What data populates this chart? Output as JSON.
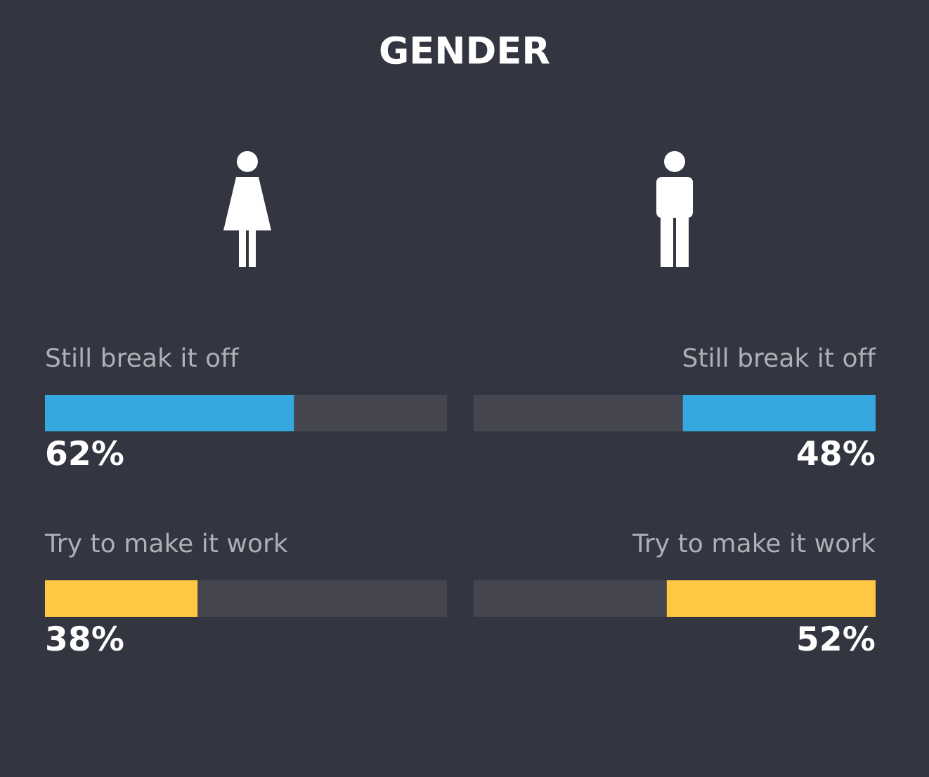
{
  "chart_data": [
    {
      "type": "bar",
      "title": "GENDER",
      "orientation": "horizontal",
      "stacked": true,
      "categories": [
        "Still break it off",
        "Try to make it work"
      ],
      "xlim": [
        0,
        100
      ],
      "series": [
        {
          "colors": [
            "#35a8e0",
            "#fec843"
          ],
          "values": [
            62,
            38
          ],
          "value_labels": [
            "62%",
            "38%"
          ]
        },
        {
          "color": "#45464f",
          "values": [
            38,
            62
          ]
        }
      ]
    },
    {
      "type": "bar",
      "orientation": "horizontal",
      "stacked": true,
      "categories": [
        "Still break it off",
        "Try to make it work"
      ],
      "xlim": [
        100,
        0
      ],
      "series": [
        {
          "colors": [
            "#35a8e0",
            "#fec843"
          ],
          "values": [
            48,
            52
          ],
          "value_labels": [
            "48%",
            "52%"
          ]
        },
        {
          "color": "#45464f",
          "values": [
            52,
            48
          ]
        }
      ]
    }
  ]
}
